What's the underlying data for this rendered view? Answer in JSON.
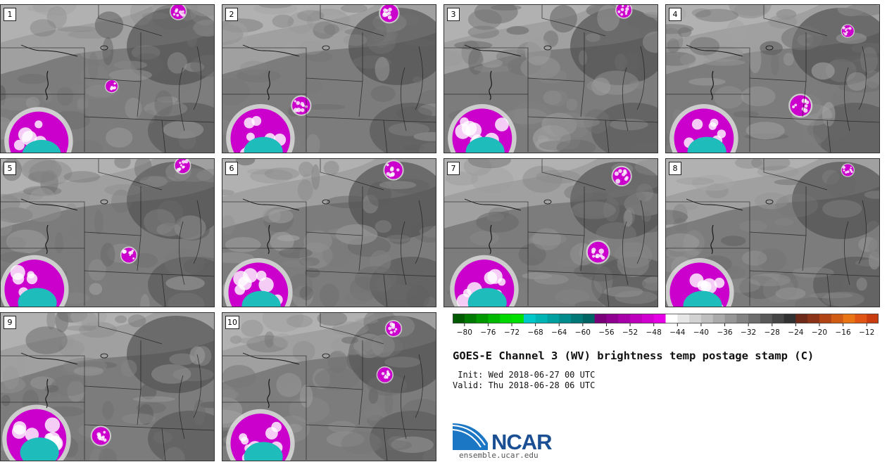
{
  "members": [
    "1",
    "2",
    "3",
    "4",
    "5",
    "6",
    "7",
    "8",
    "9",
    "10"
  ],
  "colorbar": {
    "ticks": [
      "−80",
      "−76",
      "−72",
      "−68",
      "−64",
      "−60",
      "−56",
      "−52",
      "−48",
      "−44",
      "−40",
      "−36",
      "−32",
      "−28",
      "−24",
      "−20",
      "−16",
      "−12"
    ],
    "colors": [
      "#005a00",
      "#007a00",
      "#009a00",
      "#00b800",
      "#00d800",
      "#00e000",
      "#00c8c8",
      "#00b4b4",
      "#00a0a0",
      "#008c8c",
      "#007878",
      "#006464",
      "#7a007a",
      "#900090",
      "#a800a8",
      "#bc00bc",
      "#d000d0",
      "#e600e6",
      "#ffffff",
      "#e6e6e6",
      "#d2d2d2",
      "#bebebe",
      "#aaaaaa",
      "#969696",
      "#828282",
      "#6e6e6e",
      "#5a5a5a",
      "#464646",
      "#323232",
      "#6e2a18",
      "#8c3418",
      "#b04414",
      "#d05c14",
      "#e87414",
      "#e05414",
      "#c83c10"
    ]
  },
  "title": "GOES-E Channel 3 (WV) brightness temp postage stamp (C)",
  "init": " Init: Wed 2018-06-27 00 UTC",
  "valid": "Valid: Thu 2018-06-28 06 UTC",
  "logo": {
    "name": "NCAR",
    "url": "ensemble.ucar.edu"
  }
}
